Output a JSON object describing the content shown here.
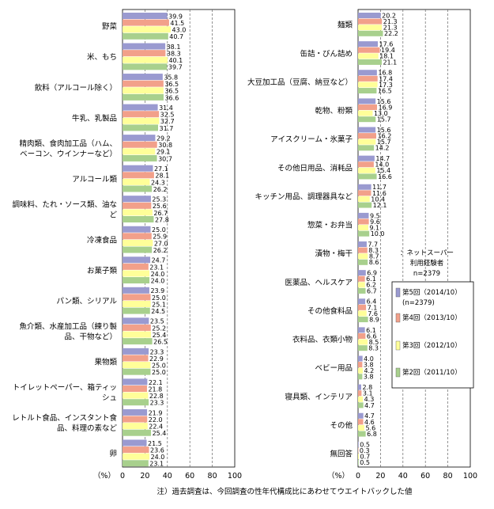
{
  "chart_data": [
    {
      "type": "bar",
      "orientation": "horizontal",
      "xlim": [
        0,
        100
      ],
      "xticks": [
        0,
        20,
        40,
        60,
        80,
        100
      ],
      "unit_label": "（%）",
      "categories": [
        "野菜",
        "米、もち",
        "飲料（アルコール除く）",
        "牛乳、乳製品",
        "精肉類、食肉加工品（ハム、ベーコン、ウインナーなど）",
        "アルコール類",
        "調味料、たれ・ソース類、油など",
        "冷凍食品",
        "お菓子類",
        "パン類、シリアル",
        "魚介類、水産加工品（練り製品、干物など）",
        "果物類",
        "トイレットペーパー、箱ティッシュ",
        "レトルト食品、インスタント食品、料理の素など",
        "卵"
      ],
      "category_lines": [
        [
          "野菜"
        ],
        [
          "米、もち"
        ],
        [
          "飲料（アルコール除く）"
        ],
        [
          "牛乳、乳製品"
        ],
        [
          "精肉類、食肉加工品（ハム、",
          "ベーコン、ウインナーなど）"
        ],
        [
          "アルコール類"
        ],
        [
          "調味料、たれ・ソース類、油な",
          "ど"
        ],
        [
          "冷凍食品"
        ],
        [
          "お菓子類"
        ],
        [
          "パン類、シリアル"
        ],
        [
          "魚介類、水産加工品（練り製",
          "品、干物など）"
        ],
        [
          "果物類"
        ],
        [
          "トイレットペーパー、箱ティッ",
          "シュ"
        ],
        [
          "レトルト食品、インスタント食",
          "品、料理の素など"
        ],
        [
          "卵"
        ]
      ],
      "series": [
        {
          "name": "第5回（2014/10）(n=2379)",
          "values": [
            39.9,
            38.1,
            35.8,
            31.4,
            29.2,
            27.1,
            25.3,
            25.0,
            24.7,
            23.9,
            23.5,
            23.3,
            22.1,
            21.9,
            21.5
          ]
        },
        {
          "name": "第4回（2013/10）",
          "values": [
            41.5,
            38.3,
            36.5,
            32.5,
            30.8,
            28.1,
            25.6,
            25.9,
            23.1,
            25.0,
            25.2,
            22.9,
            21.8,
            22.0,
            23.6
          ]
        },
        {
          "name": "第3回（2012/10）",
          "values": [
            43.0,
            40.1,
            36.5,
            32.7,
            29.1,
            24.3,
            26.7,
            27.0,
            24.0,
            25.1,
            25.4,
            25.0,
            22.8,
            22.4,
            24.0
          ]
        },
        {
          "name": "第2回（2011/10）",
          "values": [
            40.7,
            39.7,
            36.6,
            31.7,
            30.7,
            26.2,
            27.8,
            26.2,
            24.0,
            24.5,
            26.5,
            25.0,
            23.3,
            25.4,
            23.1
          ]
        }
      ]
    },
    {
      "type": "bar",
      "orientation": "horizontal",
      "xlim": [
        0,
        100
      ],
      "xticks": [
        0,
        20,
        40,
        60,
        80,
        100
      ],
      "unit_label": "（%）",
      "categories": [
        "麺類",
        "缶詰・びん詰め",
        "大豆加工品（豆腐、納豆など）",
        "乾物、粉類",
        "アイスクリーム・氷菓子",
        "その他日用品、消耗品",
        "キッチン用品、調理器具など",
        "惣菜・お弁当",
        "漬物・梅干",
        "医薬品、ヘルスケア",
        "その他食料品",
        "衣料品、衣類小物",
        "ベビー用品",
        "寝具類、インテリア",
        "その他",
        "無回答"
      ],
      "category_lines": [
        [
          "麺類"
        ],
        [
          "缶詰・びん詰め"
        ],
        [
          "大豆加工品（豆腐、納豆など）"
        ],
        [
          "乾物、粉類"
        ],
        [
          "アイスクリーム・氷菓子"
        ],
        [
          "その他日用品、消耗品"
        ],
        [
          "キッチン用品、調理器具など"
        ],
        [
          "惣菜・お弁当"
        ],
        [
          "漬物・梅干"
        ],
        [
          "医薬品、ヘルスケア"
        ],
        [
          "その他食料品"
        ],
        [
          "衣料品、衣類小物"
        ],
        [
          "ベビー用品"
        ],
        [
          "寝具類、インテリア"
        ],
        [
          "その他"
        ],
        [
          "無回答"
        ]
      ],
      "series": [
        {
          "name": "第5回（2014/10）(n=2379)",
          "values": [
            20.2,
            17.6,
            16.8,
            15.6,
            15.6,
            14.7,
            11.7,
            9.5,
            7.7,
            6.9,
            6.4,
            6.1,
            4.0,
            2.8,
            4.7,
            0.5
          ]
        },
        {
          "name": "第4回（2013/10）",
          "values": [
            21.3,
            19.4,
            17.4,
            16.9,
            16.2,
            14.0,
            11.6,
            9.6,
            8.3,
            6.1,
            7.1,
            6.6,
            3.8,
            3.1,
            4.6,
            0.3
          ]
        },
        {
          "name": "第3回（2012/10）",
          "values": [
            21.3,
            18.1,
            17.3,
            13.0,
            15.7,
            15.4,
            10.4,
            9.1,
            8.7,
            6.2,
            7.6,
            8.5,
            4.2,
            4.3,
            5.6,
            0.7
          ]
        },
        {
          "name": "第2回（2011/10）",
          "values": [
            22.2,
            21.1,
            16.5,
            15.7,
            14.2,
            16.6,
            12.1,
            10.0,
            8.6,
            6.7,
            8.9,
            8.3,
            3.8,
            4.7,
            6.8,
            0.5
          ]
        }
      ]
    }
  ],
  "legend": {
    "heading_lines": [
      "：ネットスーパー",
      "利用経験者",
      "n=2379"
    ],
    "items": [
      {
        "lines": [
          "第5回（2014/10）",
          "(n=2379)"
        ],
        "color": "#9a9ad0"
      },
      {
        "lines": [
          "第4回（2013/10）"
        ],
        "color": "#f2a08a"
      },
      {
        "lines": [
          "第3回（2012/10）"
        ],
        "color": "#ffff99"
      },
      {
        "lines": [
          "第2回（2011/10）"
        ],
        "color": "#a8d08d"
      }
    ]
  },
  "colors": [
    "#9a9ad0",
    "#f2a08a",
    "#ffff99",
    "#a8d08d"
  ],
  "note": "注）過去調査は、今回調査の性年代構成比にあわせてウエイトバックした値"
}
